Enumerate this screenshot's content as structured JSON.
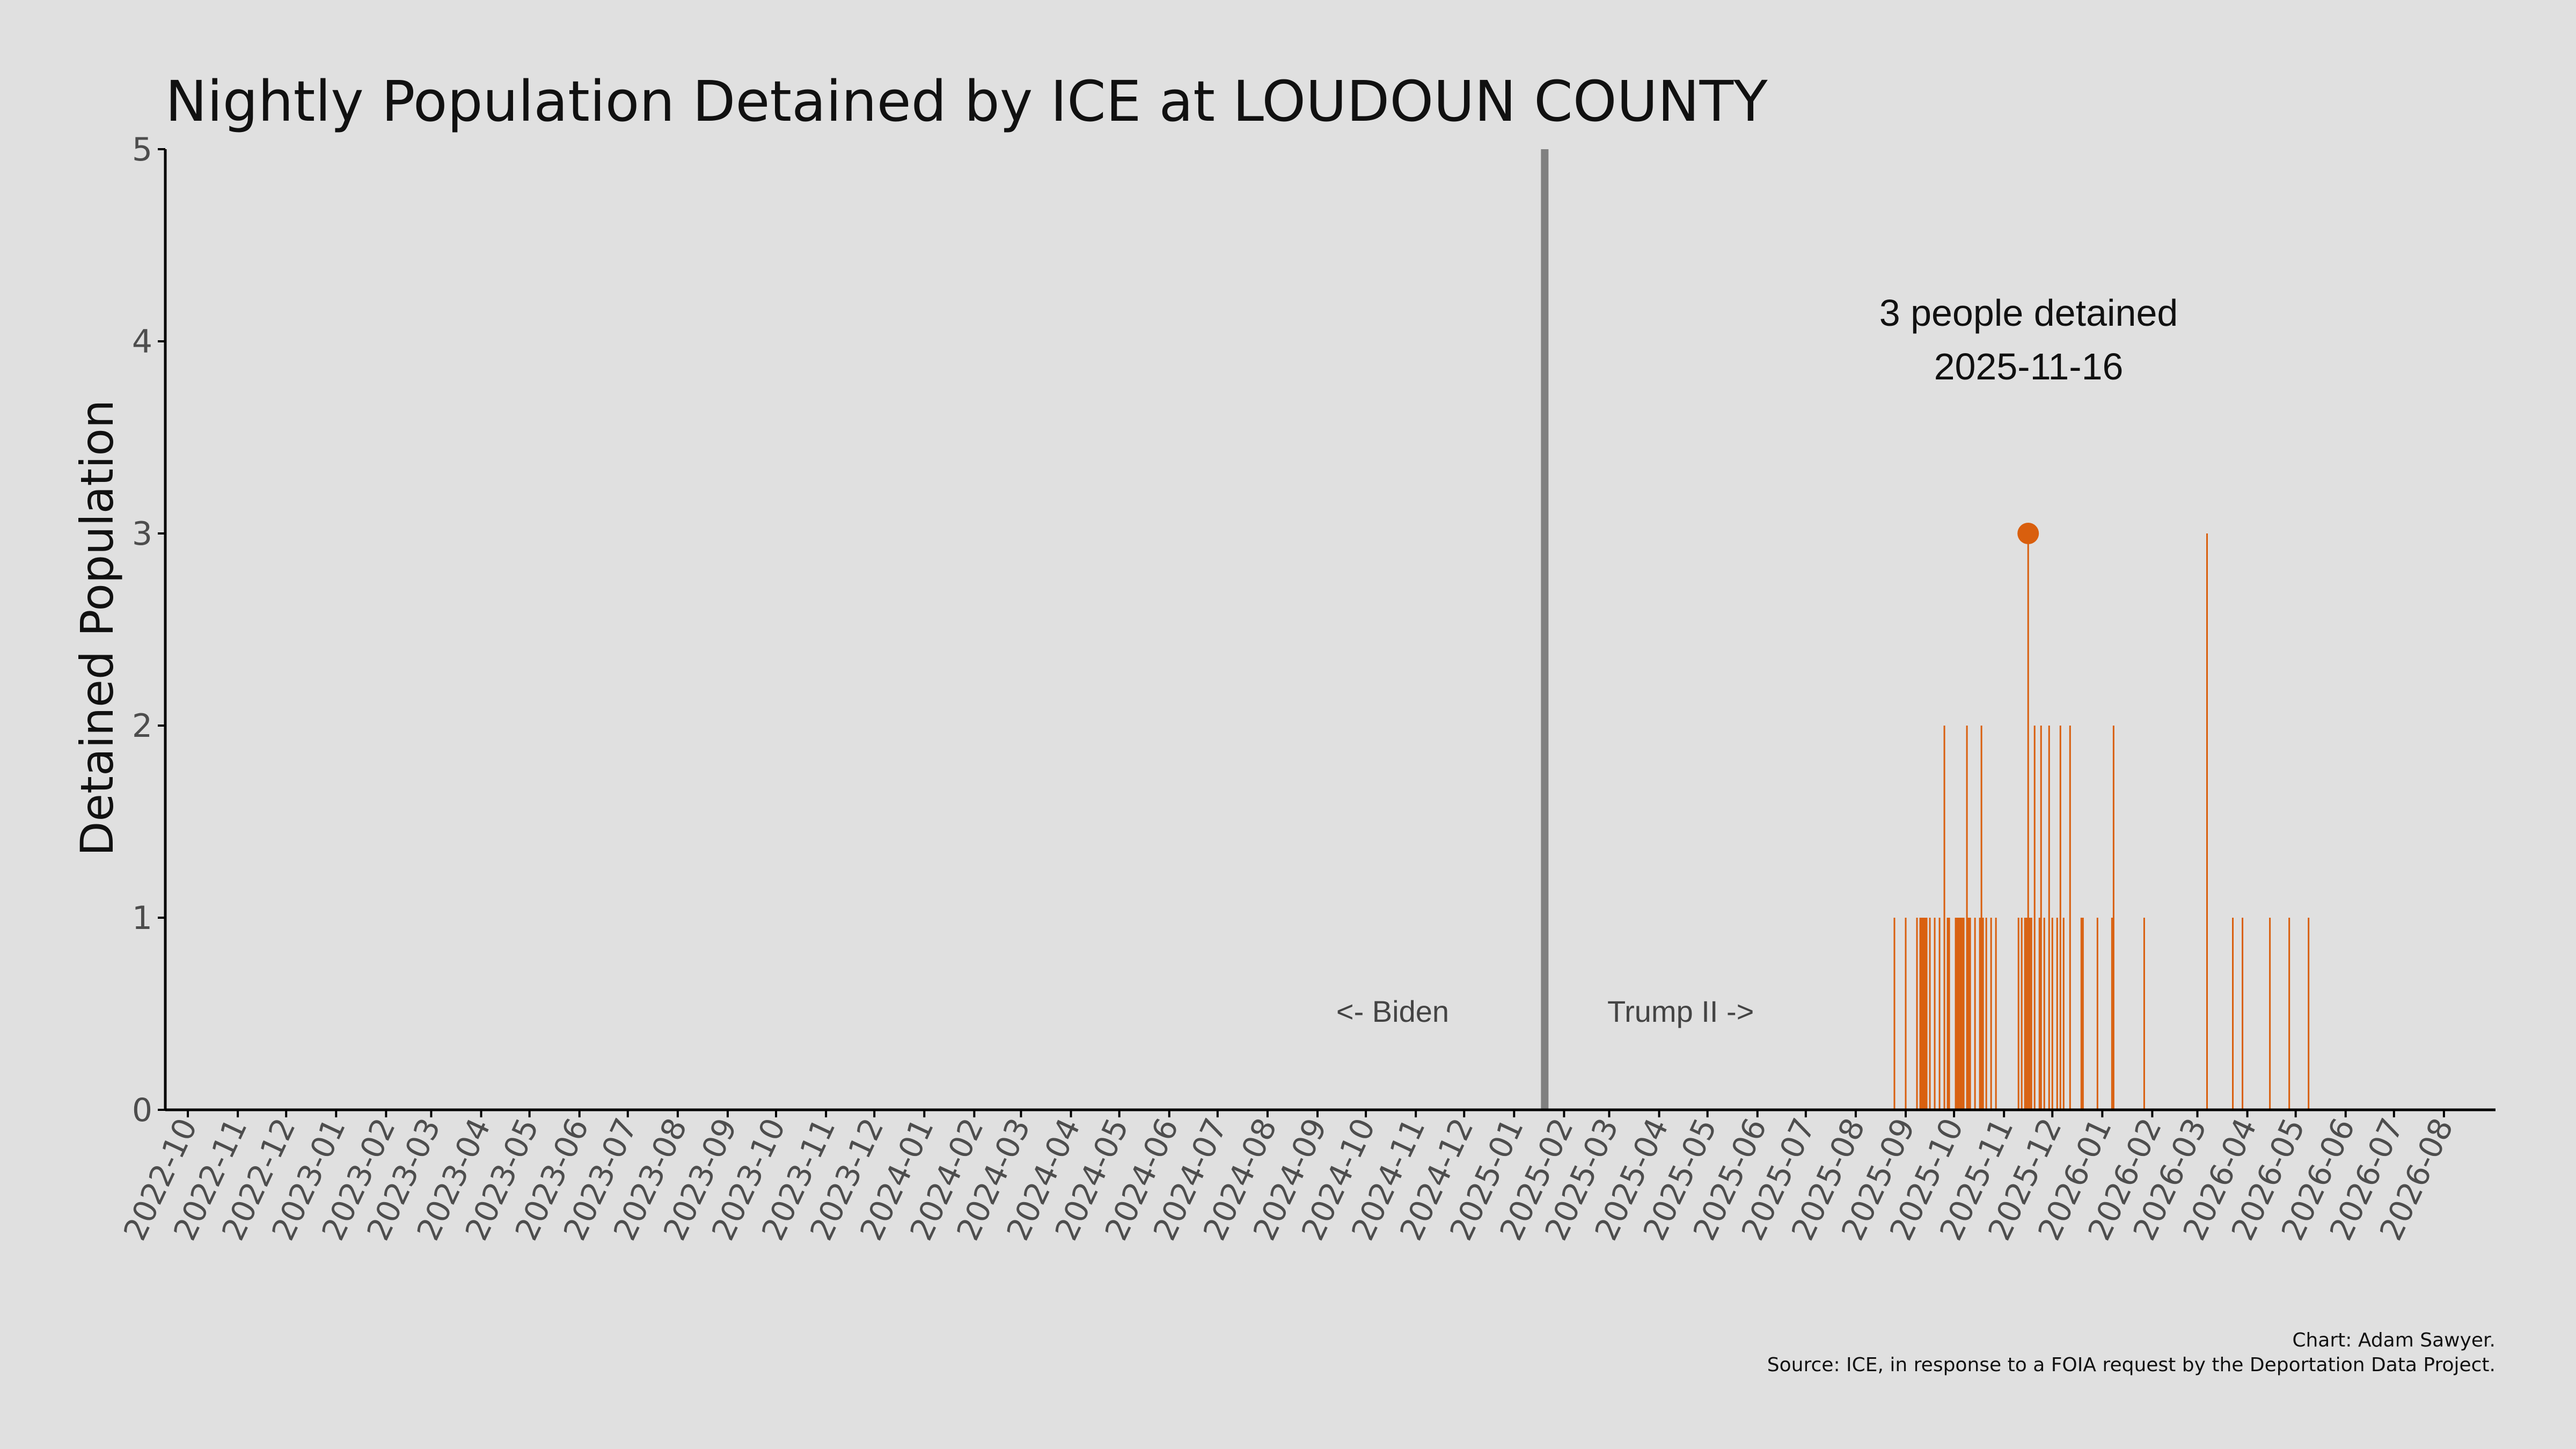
{
  "colors": {
    "background": "#e0e0e0",
    "bar": "#d95f0e",
    "divider": "#808080",
    "axis": "#000000"
  },
  "chart_data": {
    "type": "bar",
    "title": "Nightly Population Detained by ICE at LOUDOUN COUNTY",
    "xlabel": "",
    "ylabel": "Detained Population",
    "ylim": [
      0,
      5
    ],
    "yticks": [
      "0",
      "1",
      "2",
      "3",
      "4",
      "5"
    ],
    "xlim": [
      "2022-09-17",
      "2026-09-02"
    ],
    "xticks": [
      "2022-10",
      "2022-11",
      "2022-12",
      "2023-01",
      "2023-02",
      "2023-03",
      "2023-04",
      "2023-05",
      "2023-06",
      "2023-07",
      "2023-08",
      "2023-09",
      "2023-10",
      "2023-11",
      "2023-12",
      "2024-01",
      "2024-02",
      "2024-03",
      "2024-04",
      "2024-05",
      "2024-06",
      "2024-07",
      "2024-08",
      "2024-09",
      "2024-10",
      "2024-11",
      "2024-12",
      "2025-01",
      "2025-02",
      "2025-03",
      "2025-04",
      "2025-05",
      "2025-06",
      "2025-07",
      "2025-08",
      "2025-09",
      "2025-10",
      "2025-11",
      "2025-12",
      "2026-01",
      "2026-02",
      "2026-03",
      "2026-04",
      "2026-05",
      "2026-06",
      "2026-07",
      "2026-08"
    ],
    "grid": false,
    "legend": "none",
    "x": [
      "2025-08-25",
      "2025-09-01",
      "2025-09-08",
      "2025-09-10",
      "2025-09-11",
      "2025-09-12",
      "2025-09-13",
      "2025-09-14",
      "2025-09-16",
      "2025-09-19",
      "2025-09-22",
      "2025-09-25",
      "2025-09-27",
      "2025-09-28",
      "2025-10-02",
      "2025-10-03",
      "2025-10-04",
      "2025-10-05",
      "2025-10-06",
      "2025-10-07",
      "2025-10-09",
      "2025-10-10",
      "2025-10-11",
      "2025-10-14",
      "2025-10-17",
      "2025-10-18",
      "2025-10-19",
      "2025-10-21",
      "2025-10-24",
      "2025-10-27",
      "2025-11-10",
      "2025-11-12",
      "2025-11-14",
      "2025-11-15",
      "2025-11-16",
      "2025-11-17",
      "2025-11-18",
      "2025-11-20",
      "2025-11-23",
      "2025-11-24",
      "2025-11-26",
      "2025-11-29",
      "2025-12-01",
      "2025-12-04",
      "2025-12-06",
      "2025-12-08",
      "2025-12-12",
      "2025-12-19",
      "2025-12-20",
      "2025-12-29",
      "2026-01-07",
      "2026-01-08",
      "2026-01-27",
      "2026-03-07",
      "2026-03-23",
      "2026-03-29",
      "2026-04-15",
      "2026-04-27",
      "2026-05-09"
    ],
    "values": [
      1,
      1,
      1,
      1,
      1,
      1,
      1,
      1,
      1,
      1,
      1,
      2,
      1,
      1,
      1,
      1,
      1,
      1,
      1,
      1,
      2,
      1,
      1,
      1,
      1,
      2,
      1,
      1,
      1,
      1,
      1,
      1,
      1,
      1,
      3,
      1,
      1,
      2,
      1,
      2,
      1,
      2,
      1,
      1,
      2,
      1,
      2,
      1,
      1,
      1,
      1,
      2,
      1,
      3,
      1,
      1,
      1,
      1,
      1
    ],
    "highlight": {
      "x": "2025-11-16",
      "value": 3
    },
    "divider_date": "2025-01-20",
    "annotations": {
      "highlight_line1": "3 people detained",
      "highlight_line2": "2025-11-16",
      "left_era": "<- Biden",
      "right_era": "Trump II ->"
    }
  },
  "credits": {
    "line1": "Chart: Adam Sawyer.",
    "line2": "Source: ICE, in response to a FOIA request by the Deportation Data Project."
  }
}
